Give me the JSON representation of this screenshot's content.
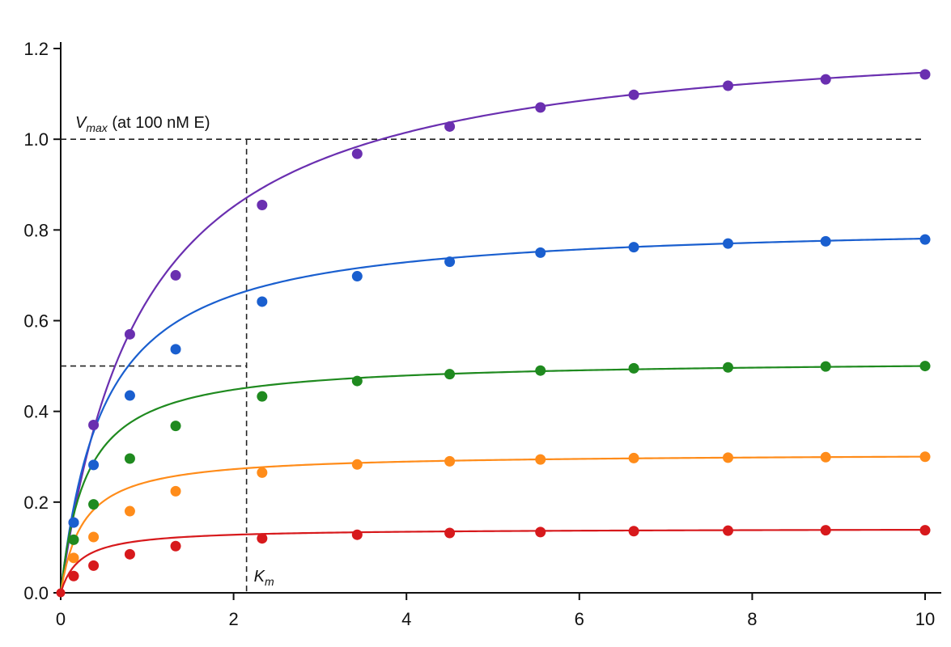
{
  "chart_data": {
    "type": "line",
    "title": "",
    "xlabel": "",
    "ylabel": "",
    "xlim": [
      0,
      10
    ],
    "ylim": [
      0,
      1.2
    ],
    "x_ticks": [
      0,
      2,
      4,
      6,
      8,
      10
    ],
    "x_tick_labels": [
      "0",
      "2",
      "4",
      "6",
      "8",
      "10"
    ],
    "y_ticks": [
      0.0,
      0.2,
      0.4,
      0.6,
      0.8,
      1.0,
      1.2
    ],
    "y_tick_labels": [
      "0.0",
      "0.2",
      "0.4",
      "0.6",
      "0.8",
      "1.0",
      "1.2"
    ],
    "grid": false,
    "reference_lines": {
      "vmax": 1.0,
      "half_vmax": 0.5,
      "km": 2.15
    },
    "annotations": {
      "vmax_symbol": "V",
      "vmax_subscript": "max",
      "vmax_suffix": " (at 100 nM E)",
      "km_symbol": "K",
      "km_subscript": "m"
    },
    "x": [
      0,
      0.15,
      0.38,
      0.8,
      1.33,
      2.33,
      3.43,
      4.5,
      5.55,
      6.63,
      7.72,
      8.85,
      10.0
    ],
    "series": [
      {
        "color": "#6a2fb0",
        "vmax": 1.256,
        "km": 0.95,
        "values": [
          0.0,
          0.155,
          0.37,
          0.57,
          0.7,
          0.855,
          0.968,
          1.028,
          1.07,
          1.098,
          1.118,
          1.132,
          1.143
        ]
      },
      {
        "color": "#1a5fcf",
        "vmax": 0.82,
        "km": 0.5,
        "values": [
          0.0,
          0.155,
          0.282,
          0.435,
          0.537,
          0.642,
          0.698,
          0.73,
          0.75,
          0.762,
          0.77,
          0.775,
          0.779
        ]
      },
      {
        "color": "#1f8a1f",
        "vmax": 0.515,
        "km": 0.3,
        "values": [
          0.0,
          0.117,
          0.195,
          0.296,
          0.368,
          0.433,
          0.467,
          0.482,
          0.49,
          0.495,
          0.497,
          0.499,
          0.5
        ]
      },
      {
        "color": "#ff8c1a",
        "vmax": 0.308,
        "km": 0.26,
        "values": [
          0.0,
          0.077,
          0.123,
          0.18,
          0.224,
          0.265,
          0.283,
          0.29,
          0.294,
          0.297,
          0.298,
          0.299,
          0.3
        ]
      },
      {
        "color": "#d7191c",
        "vmax": 0.142,
        "km": 0.22,
        "values": [
          0.0,
          0.037,
          0.06,
          0.085,
          0.103,
          0.12,
          0.128,
          0.132,
          0.134,
          0.136,
          0.137,
          0.138,
          0.138
        ]
      }
    ]
  }
}
